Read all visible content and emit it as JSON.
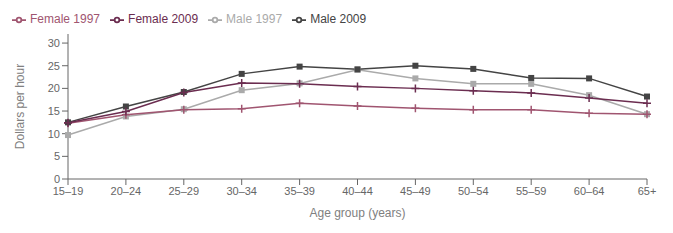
{
  "chart_data": {
    "type": "line",
    "xlabel": "Age group (years)",
    "ylabel": "Dollars per hour",
    "categories": [
      "15–19",
      "20–24",
      "25–29",
      "30–34",
      "35–39",
      "40–44",
      "45–49",
      "50–54",
      "55–59",
      "60–64",
      "65+"
    ],
    "series": [
      {
        "name": "Male 1997",
        "color": "#aaaaaa",
        "marker": "square",
        "line_style": "solid",
        "values": [
          9.7,
          13.8,
          15.4,
          19.6,
          21.1,
          24.1,
          22.2,
          21.0,
          21.0,
          18.5,
          14.3
        ]
      },
      {
        "name": "Female 1997",
        "color": "#a05570",
        "marker": "plus",
        "line_style": "solid",
        "values": [
          12.3,
          14.2,
          15.3,
          15.5,
          16.7,
          16.1,
          15.6,
          15.3,
          15.3,
          14.5,
          14.3
        ]
      },
      {
        "name": "Male 2009",
        "color": "#444444",
        "marker": "square",
        "line_style": "solid",
        "values": [
          12.5,
          16.0,
          19.2,
          23.2,
          24.8,
          24.2,
          25.0,
          24.3,
          22.3,
          22.2,
          18.2
        ]
      },
      {
        "name": "Female 2009",
        "color": "#6b2d50",
        "marker": "plus",
        "line_style": "solid",
        "values": [
          12.4,
          14.9,
          19.1,
          21.2,
          21.0,
          20.4,
          20.0,
          19.5,
          19.0,
          17.9,
          16.7
        ]
      }
    ],
    "ylim": [
      0,
      32
    ],
    "yticks": [
      0,
      5,
      10,
      15,
      20,
      25,
      30
    ],
    "grid": false,
    "legend": "upper left"
  }
}
